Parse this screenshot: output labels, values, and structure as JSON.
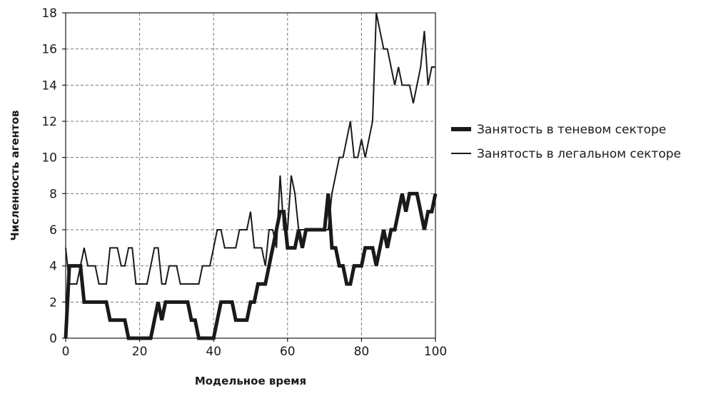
{
  "chart_data": {
    "type": "line",
    "xlabel": "Модельное время",
    "ylabel": "Численность агентов",
    "xlim": [
      0,
      100
    ],
    "ylim": [
      0,
      18
    ],
    "xticks": [
      0,
      20,
      40,
      60,
      80,
      100
    ],
    "yticks": [
      0,
      2,
      4,
      6,
      8,
      10,
      12,
      14,
      16,
      18
    ],
    "grid": true,
    "legend_position": "right",
    "series": [
      {
        "name": "Занятость в теневом секторе",
        "color": "#1a1a1a",
        "style": "thick",
        "x": [
          0,
          1,
          2,
          3,
          4,
          5,
          6,
          7,
          8,
          9,
          10,
          11,
          12,
          13,
          14,
          15,
          16,
          17,
          18,
          19,
          20,
          21,
          22,
          23,
          24,
          25,
          26,
          27,
          28,
          29,
          30,
          31,
          32,
          33,
          34,
          35,
          36,
          37,
          38,
          39,
          40,
          41,
          42,
          43,
          44,
          45,
          46,
          47,
          48,
          49,
          50,
          51,
          52,
          53,
          54,
          55,
          56,
          57,
          58,
          59,
          60,
          61,
          62,
          63,
          64,
          65,
          66,
          67,
          68,
          69,
          70,
          71,
          72,
          73,
          74,
          75,
          76,
          77,
          78,
          79,
          80,
          81,
          82,
          83,
          84,
          85,
          86,
          87,
          88,
          89,
          90,
          91,
          92,
          93,
          94,
          95,
          96,
          97,
          98,
          99,
          100
        ],
        "y": [
          0,
          4,
          4,
          4,
          4,
          2,
          2,
          2,
          2,
          2,
          2,
          2,
          1,
          1,
          1,
          1,
          1,
          0,
          0,
          0,
          0,
          0,
          0,
          0,
          1,
          2,
          1,
          2,
          2,
          2,
          2,
          2,
          2,
          2,
          1,
          1,
          0,
          0,
          0,
          0,
          0,
          1,
          2,
          2,
          2,
          2,
          1,
          1,
          1,
          1,
          2,
          2,
          3,
          3,
          3,
          4,
          5,
          6,
          7,
          7,
          5,
          5,
          5,
          6,
          5,
          6,
          6,
          6,
          6,
          6,
          6,
          8,
          5,
          5,
          4,
          4,
          3,
          3,
          4,
          4,
          4,
          5,
          5,
          5,
          4,
          5,
          6,
          5,
          6,
          6,
          7,
          8,
          7,
          8,
          8,
          8,
          7,
          6,
          7,
          7,
          8
        ]
      },
      {
        "name": "Занятость в легальном секторе",
        "color": "#1a1a1a",
        "style": "thin",
        "x": [
          0,
          1,
          2,
          3,
          4,
          5,
          6,
          7,
          8,
          9,
          10,
          11,
          12,
          13,
          14,
          15,
          16,
          17,
          18,
          19,
          20,
          21,
          22,
          23,
          24,
          25,
          26,
          27,
          28,
          29,
          30,
          31,
          32,
          33,
          34,
          35,
          36,
          37,
          38,
          39,
          40,
          41,
          42,
          43,
          44,
          45,
          46,
          47,
          48,
          49,
          50,
          51,
          52,
          53,
          54,
          55,
          56,
          57,
          58,
          59,
          60,
          61,
          62,
          63,
          64,
          65,
          66,
          67,
          68,
          69,
          70,
          71,
          72,
          73,
          74,
          75,
          76,
          77,
          78,
          79,
          80,
          81,
          82,
          83,
          84,
          85,
          86,
          87,
          88,
          89,
          90,
          91,
          92,
          93,
          94,
          95,
          96,
          97,
          98,
          99,
          100
        ],
        "y": [
          5,
          3,
          3,
          3,
          4,
          5,
          4,
          4,
          4,
          3,
          3,
          3,
          5,
          5,
          5,
          4,
          4,
          5,
          5,
          3,
          3,
          3,
          3,
          4,
          5,
          5,
          3,
          3,
          4,
          4,
          4,
          3,
          3,
          3,
          3,
          3,
          3,
          4,
          4,
          4,
          5,
          6,
          6,
          5,
          5,
          5,
          5,
          6,
          6,
          6,
          7,
          5,
          5,
          5,
          4,
          6,
          6,
          5,
          9,
          6,
          6,
          9,
          8,
          6,
          6,
          6,
          6,
          6,
          6,
          6,
          6,
          6,
          8,
          9,
          10,
          10,
          11,
          12,
          10,
          10,
          11,
          10,
          11,
          12,
          18,
          17,
          16,
          16,
          15,
          14,
          15,
          14,
          14,
          14,
          13,
          14,
          15,
          17,
          14,
          15,
          15
        ]
      }
    ]
  }
}
